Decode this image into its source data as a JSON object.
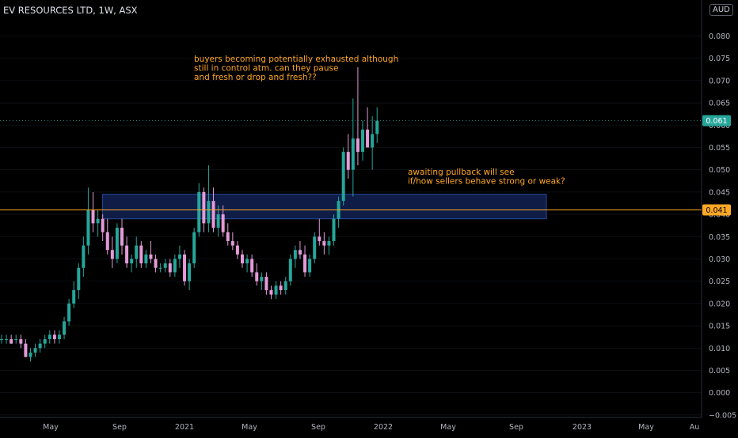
{
  "header": {
    "title": "EV RESOURCES LTD, 1W, ASX"
  },
  "currency": "AUD",
  "price_labels": {
    "last": "0.061",
    "level": "0.041"
  },
  "annotations": {
    "top_note": [
      "buyers becoming potentially exhausted although",
      "still in control atm.  can they pause",
      " and fresh or drop and fresh??"
    ],
    "right_note": [
      "awaiting pullback  will see",
      " if/how sellers behave strong or weak?"
    ]
  },
  "colors": {
    "up": "#26a69a",
    "down": "#e39ad8",
    "annotation": "#ffa726",
    "level_line": "#ffa726",
    "zone_fill": "#0f1e4a",
    "zone_border": "#2a4a9e",
    "last_price_bg": "#26a69a",
    "grid": "#1a1d26"
  },
  "chart_data": {
    "type": "candlestick",
    "title": "EV RESOURCES LTD, 1W, ASX",
    "y_unit": "AUD",
    "ylim": [
      -0.005,
      0.085
    ],
    "y_ticks": [
      "0.080",
      "0.075",
      "0.070",
      "0.065",
      "0.060",
      "0.055",
      "0.050",
      "0.045",
      "0.040",
      "0.035",
      "0.030",
      "0.025",
      "0.020",
      "0.015",
      "0.010",
      "0.005",
      "0.000",
      "−0.005"
    ],
    "x_ticks": [
      "May",
      "Sep",
      "2021",
      "May",
      "Sep",
      "2022",
      "May",
      "Sep",
      "2023",
      "May",
      "Au"
    ],
    "last_price": 0.061,
    "horizontal_level": 0.041,
    "zone": {
      "low": 0.039,
      "high": 0.0445,
      "from_week": 14,
      "to_week": 78
    },
    "candles": [
      [
        0.012,
        0.013,
        0.011,
        0.012
      ],
      [
        0.012,
        0.013,
        0.011,
        0.012
      ],
      [
        0.012,
        0.013,
        0.011,
        0.011
      ],
      [
        0.012,
        0.013,
        0.011,
        0.012
      ],
      [
        0.012,
        0.013,
        0.01,
        0.011
      ],
      [
        0.011,
        0.012,
        0.008,
        0.008
      ],
      [
        0.008,
        0.01,
        0.007,
        0.009
      ],
      [
        0.009,
        0.011,
        0.008,
        0.01
      ],
      [
        0.01,
        0.012,
        0.009,
        0.011
      ],
      [
        0.011,
        0.013,
        0.01,
        0.012
      ],
      [
        0.012,
        0.014,
        0.011,
        0.013
      ],
      [
        0.013,
        0.014,
        0.011,
        0.012
      ],
      [
        0.012,
        0.014,
        0.011,
        0.013
      ],
      [
        0.013,
        0.017,
        0.012,
        0.016
      ],
      [
        0.016,
        0.021,
        0.015,
        0.02
      ],
      [
        0.02,
        0.025,
        0.019,
        0.023
      ],
      [
        0.023,
        0.029,
        0.021,
        0.028
      ],
      [
        0.028,
        0.035,
        0.026,
        0.033
      ],
      [
        0.033,
        0.046,
        0.031,
        0.041
      ],
      [
        0.041,
        0.045,
        0.036,
        0.038
      ],
      [
        0.038,
        0.041,
        0.035,
        0.039
      ],
      [
        0.039,
        0.04,
        0.034,
        0.036
      ],
      [
        0.036,
        0.039,
        0.031,
        0.032
      ],
      [
        0.032,
        0.035,
        0.028,
        0.03
      ],
      [
        0.03,
        0.038,
        0.029,
        0.037
      ],
      [
        0.037,
        0.039,
        0.031,
        0.033
      ],
      [
        0.033,
        0.035,
        0.028,
        0.029
      ],
      [
        0.029,
        0.031,
        0.027,
        0.03
      ],
      [
        0.03,
        0.035,
        0.028,
        0.033
      ],
      [
        0.033,
        0.034,
        0.028,
        0.029
      ],
      [
        0.029,
        0.032,
        0.028,
        0.031
      ],
      [
        0.031,
        0.034,
        0.029,
        0.03
      ],
      [
        0.03,
        0.031,
        0.027,
        0.028
      ],
      [
        0.028,
        0.029,
        0.027,
        0.028
      ],
      [
        0.028,
        0.03,
        0.027,
        0.029
      ],
      [
        0.029,
        0.03,
        0.026,
        0.027
      ],
      [
        0.027,
        0.031,
        0.026,
        0.03
      ],
      [
        0.03,
        0.033,
        0.028,
        0.031
      ],
      [
        0.031,
        0.032,
        0.024,
        0.025
      ],
      [
        0.025,
        0.03,
        0.023,
        0.029
      ],
      [
        0.029,
        0.037,
        0.028,
        0.036
      ],
      [
        0.036,
        0.047,
        0.035,
        0.045
      ],
      [
        0.045,
        0.046,
        0.036,
        0.038
      ],
      [
        0.038,
        0.051,
        0.036,
        0.043
      ],
      [
        0.043,
        0.046,
        0.036,
        0.037
      ],
      [
        0.037,
        0.042,
        0.035,
        0.04
      ],
      [
        0.04,
        0.042,
        0.035,
        0.036
      ],
      [
        0.036,
        0.038,
        0.033,
        0.034
      ],
      [
        0.034,
        0.036,
        0.032,
        0.033
      ],
      [
        0.033,
        0.034,
        0.03,
        0.031
      ],
      [
        0.031,
        0.032,
        0.028,
        0.029
      ],
      [
        0.029,
        0.031,
        0.027,
        0.03
      ],
      [
        0.03,
        0.031,
        0.026,
        0.027
      ],
      [
        0.027,
        0.029,
        0.024,
        0.025
      ],
      [
        0.025,
        0.027,
        0.023,
        0.026
      ],
      [
        0.026,
        0.027,
        0.022,
        0.023
      ],
      [
        0.023,
        0.024,
        0.021,
        0.022
      ],
      [
        0.022,
        0.025,
        0.021,
        0.024
      ],
      [
        0.024,
        0.025,
        0.022,
        0.023
      ],
      [
        0.023,
        0.026,
        0.022,
        0.025
      ],
      [
        0.025,
        0.031,
        0.024,
        0.03
      ],
      [
        0.03,
        0.033,
        0.028,
        0.032
      ],
      [
        0.032,
        0.034,
        0.03,
        0.031
      ],
      [
        0.031,
        0.033,
        0.026,
        0.027
      ],
      [
        0.027,
        0.031,
        0.026,
        0.03
      ],
      [
        0.03,
        0.036,
        0.029,
        0.035
      ],
      [
        0.035,
        0.039,
        0.033,
        0.034
      ],
      [
        0.034,
        0.036,
        0.031,
        0.033
      ],
      [
        0.033,
        0.035,
        0.031,
        0.034
      ],
      [
        0.034,
        0.04,
        0.033,
        0.039
      ],
      [
        0.039,
        0.044,
        0.037,
        0.043
      ],
      [
        0.043,
        0.055,
        0.042,
        0.054
      ],
      [
        0.054,
        0.058,
        0.048,
        0.05
      ],
      [
        0.05,
        0.066,
        0.044,
        0.057
      ],
      [
        0.057,
        0.073,
        0.051,
        0.054
      ],
      [
        0.054,
        0.061,
        0.052,
        0.059
      ],
      [
        0.059,
        0.064,
        0.055,
        0.055
      ],
      [
        0.055,
        0.062,
        0.05,
        0.058
      ],
      [
        0.058,
        0.064,
        0.056,
        0.061
      ]
    ]
  }
}
